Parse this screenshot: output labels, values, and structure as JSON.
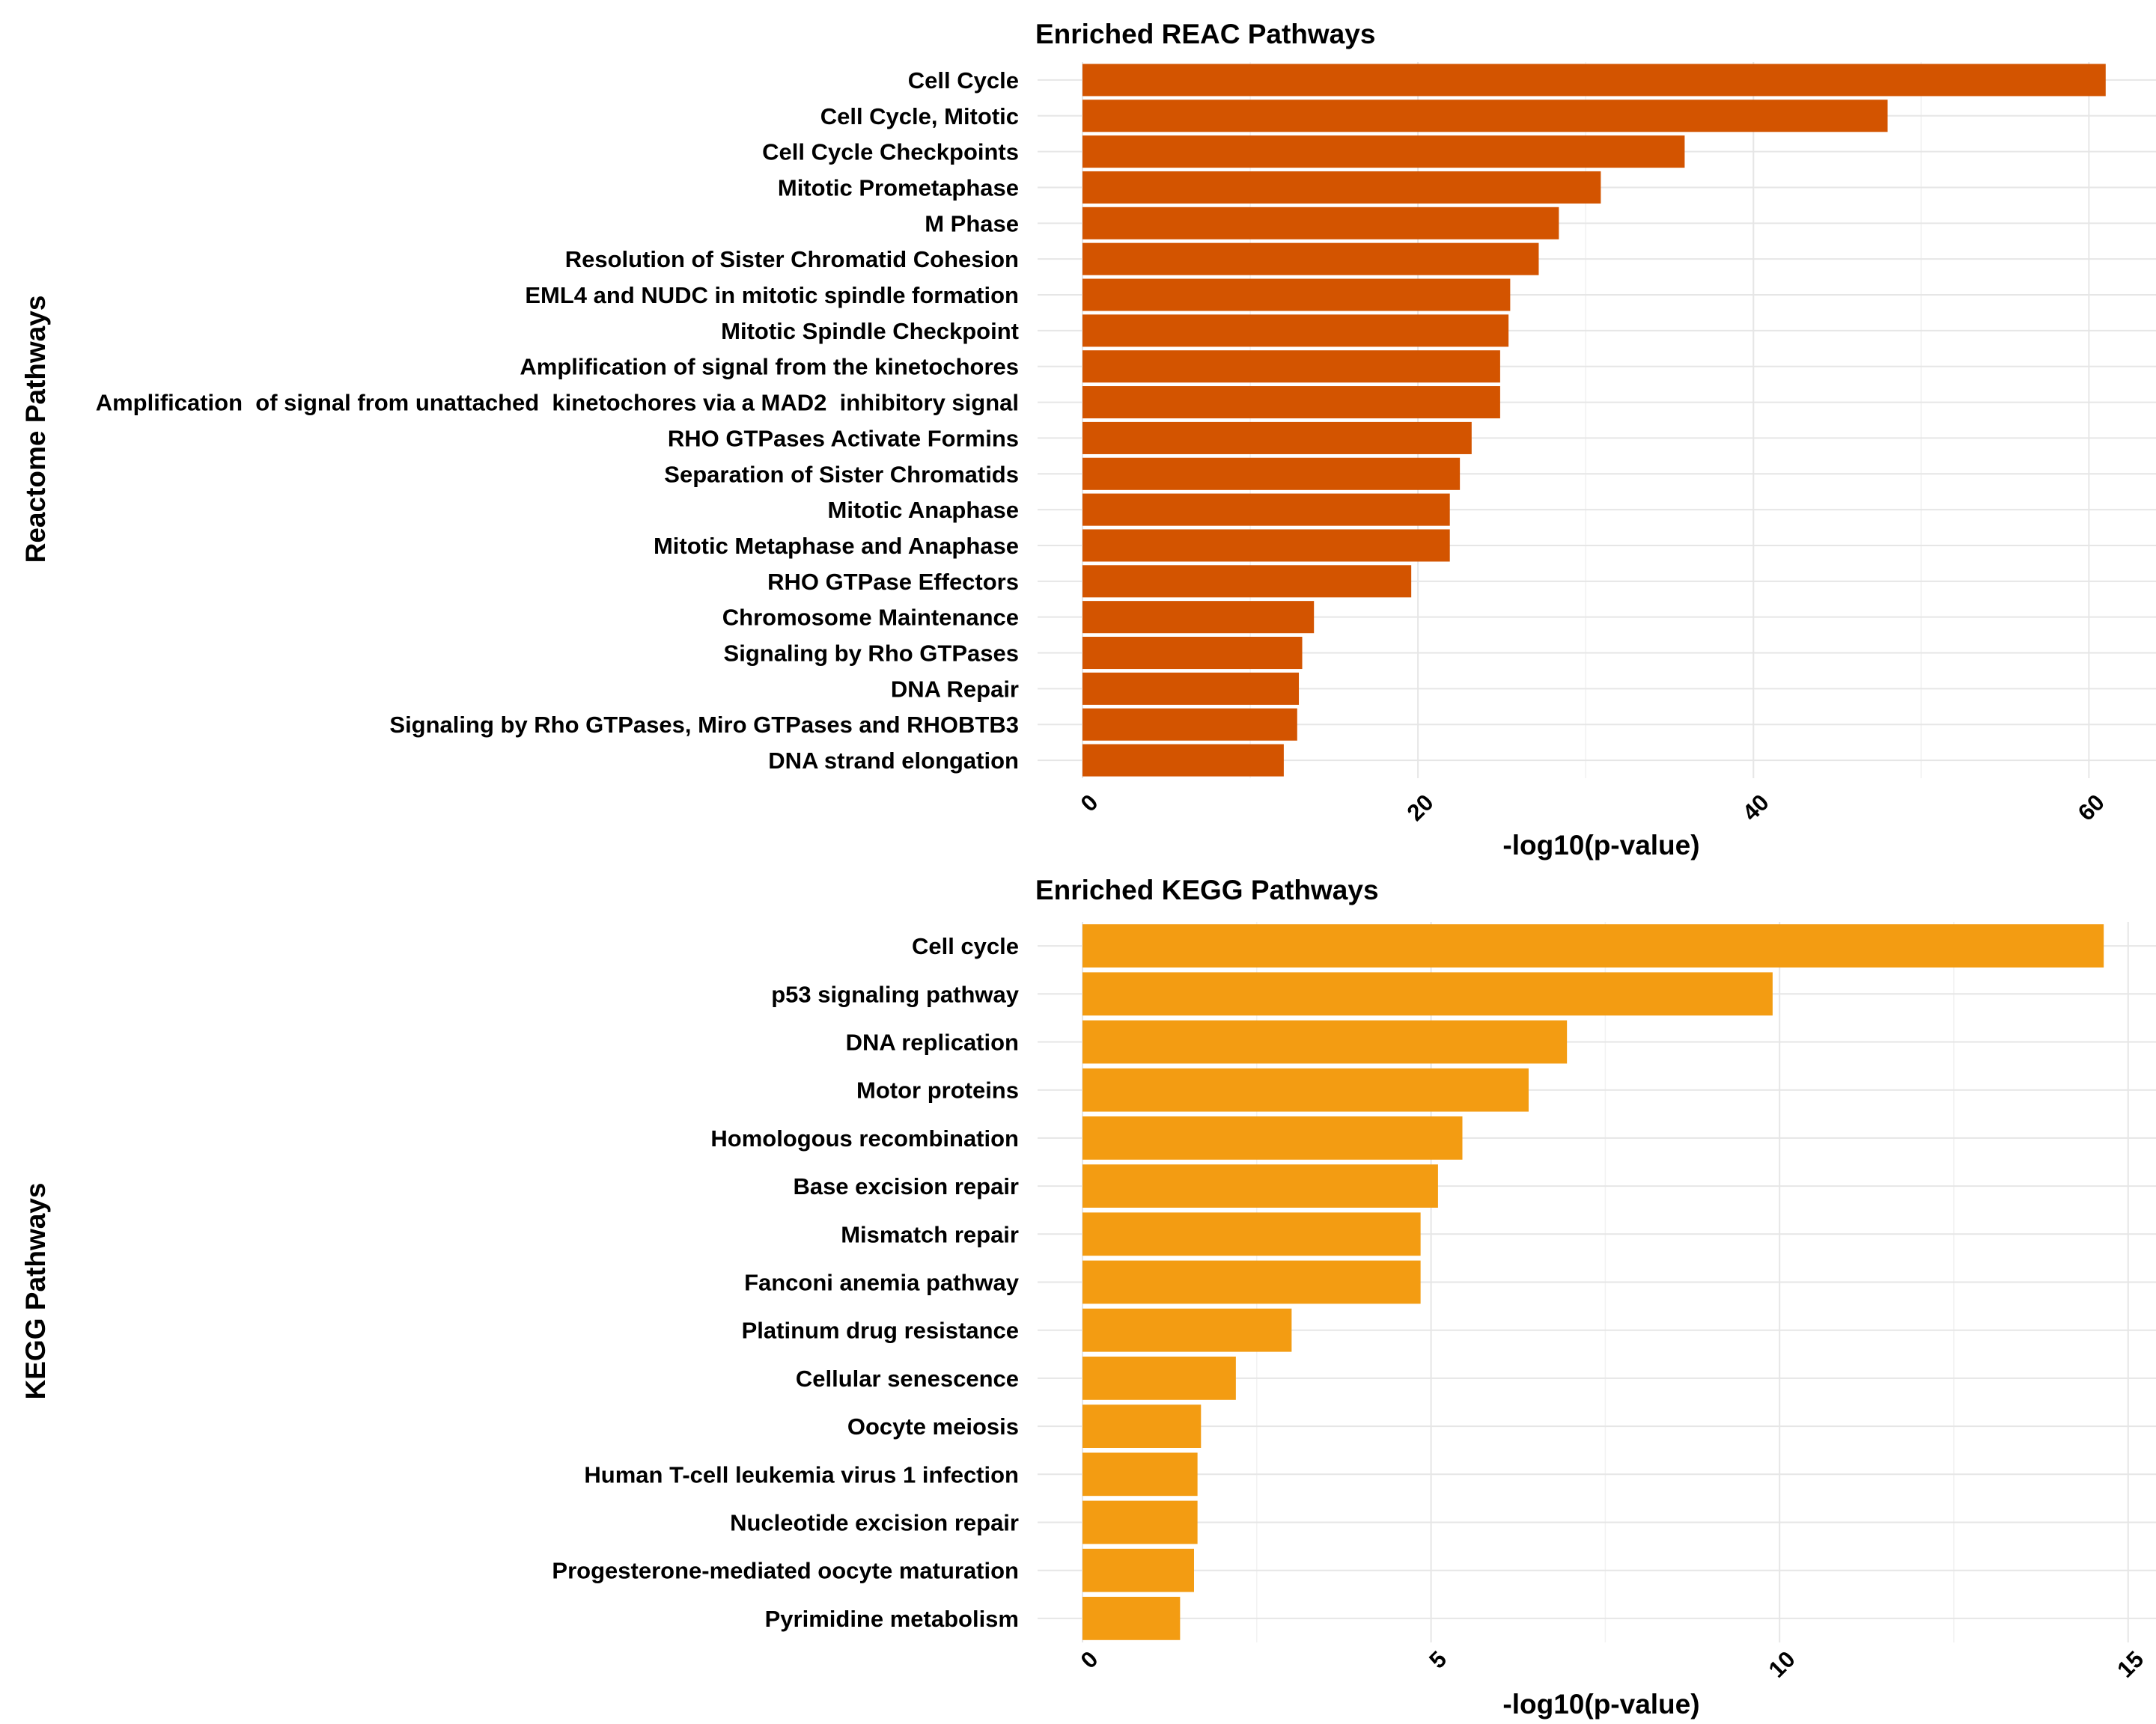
{
  "chart_data": [
    {
      "type": "bar",
      "orientation": "horizontal",
      "title": "Enriched REAC Pathways",
      "xlabel": "-log10(p-value)",
      "ylabel": "Reactome Pathways",
      "xlim": [
        0,
        64
      ],
      "xticks": [
        0,
        20,
        40,
        60
      ],
      "grid": true,
      "color": "#d35400",
      "categories": [
        "Cell Cycle",
        "Cell Cycle, Mitotic",
        "Cell Cycle Checkpoints",
        "Mitotic Prometaphase",
        "M Phase",
        "Resolution of Sister Chromatid Cohesion",
        "EML4 and NUDC in mitotic spindle formation",
        "Mitotic Spindle Checkpoint",
        "Amplification of signal from the kinetochores",
        "Amplification  of signal from unattached  kinetochores via a MAD2  inhibitory signal",
        "RHO GTPases Activate Formins",
        "Separation of Sister Chromatids",
        "Mitotic Anaphase",
        "Mitotic Metaphase and Anaphase",
        "RHO GTPase Effectors",
        "Chromosome Maintenance",
        "Signaling by Rho GTPases",
        "DNA Repair",
        "Signaling by Rho GTPases, Miro GTPases and RHOBTB3",
        "DNA strand elongation"
      ],
      "values": [
        61.0,
        48.0,
        35.9,
        30.9,
        28.4,
        27.2,
        25.5,
        25.4,
        24.9,
        24.9,
        23.2,
        22.5,
        21.9,
        21.9,
        19.6,
        13.8,
        13.1,
        12.9,
        12.8,
        12.0
      ]
    },
    {
      "type": "bar",
      "orientation": "horizontal",
      "title": "Enriched KEGG Pathways",
      "xlabel": "-log10(p-value)",
      "ylabel": "KEGG Pathways",
      "xlim": [
        0,
        15.4
      ],
      "xticks": [
        0,
        5,
        10,
        15
      ],
      "grid": true,
      "color": "#f39c12",
      "categories": [
        "Cell cycle",
        "p53 signaling pathway",
        "DNA replication",
        "Motor proteins",
        "Homologous recombination",
        "Base excision repair",
        "Mismatch repair",
        "Fanconi anemia pathway",
        "Platinum drug resistance",
        "Cellular senescence",
        "Oocyte meiosis",
        "Human T-cell leukemia virus 1 infection",
        "Nucleotide excision repair",
        "Progesterone-mediated oocyte maturation",
        "Pyrimidine metabolism"
      ],
      "values": [
        14.65,
        9.9,
        6.95,
        6.4,
        5.45,
        5.1,
        4.85,
        4.85,
        3.0,
        2.2,
        1.7,
        1.65,
        1.65,
        1.6,
        1.4
      ]
    }
  ]
}
